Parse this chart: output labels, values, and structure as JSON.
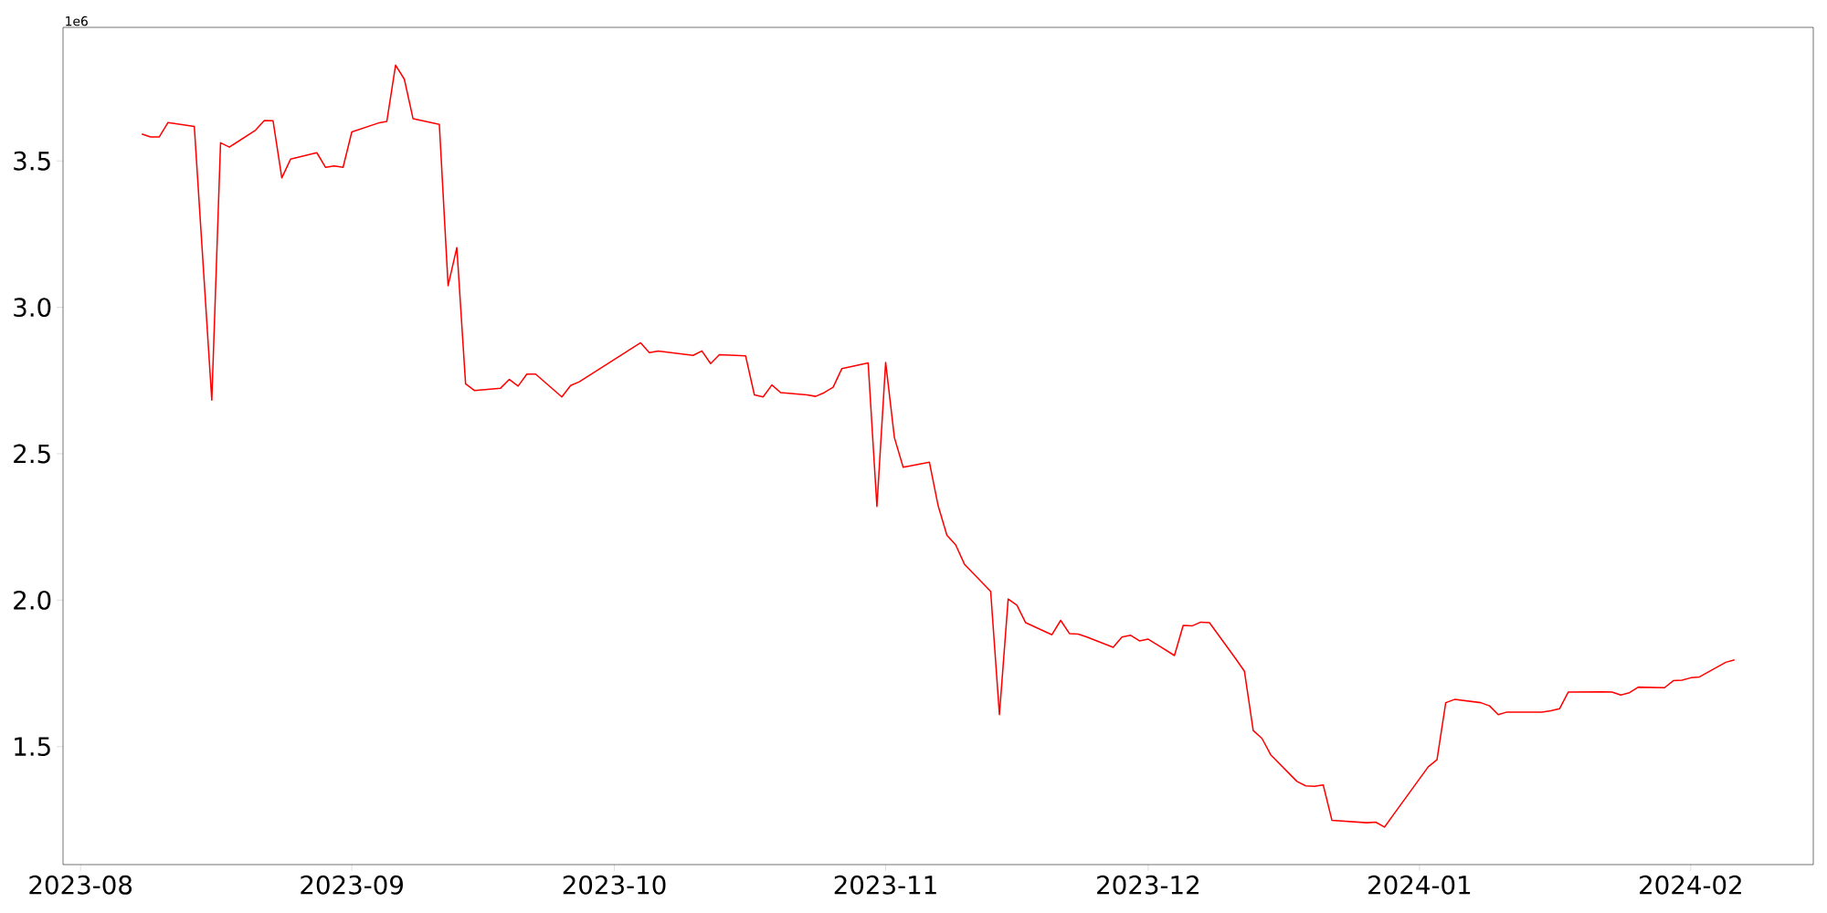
{
  "chart_data": {
    "type": "line",
    "annotations": [
      "1e6"
    ],
    "x": [
      "2023-08-08",
      "2023-08-09",
      "2023-08-10",
      "2023-08-11",
      "2023-08-14",
      "2023-08-16",
      "2023-08-17",
      "2023-08-18",
      "2023-08-21",
      "2023-08-22",
      "2023-08-23",
      "2023-08-24",
      "2023-08-25",
      "2023-08-28",
      "2023-08-29",
      "2023-08-30",
      "2023-08-31",
      "2023-09-01",
      "2023-09-04",
      "2023-09-05",
      "2023-09-06",
      "2023-09-07",
      "2023-09-08",
      "2023-09-11",
      "2023-09-12",
      "2023-09-13",
      "2023-09-14",
      "2023-09-15",
      "2023-09-18",
      "2023-09-19",
      "2023-09-20",
      "2023-09-21",
      "2023-09-22",
      "2023-09-25",
      "2023-09-26",
      "2023-09-27",
      "2023-10-04",
      "2023-10-05",
      "2023-10-06",
      "2023-10-10",
      "2023-10-11",
      "2023-10-12",
      "2023-10-13",
      "2023-10-16",
      "2023-10-17",
      "2023-10-18",
      "2023-10-19",
      "2023-10-20",
      "2023-10-23",
      "2023-10-24",
      "2023-10-25",
      "2023-10-26",
      "2023-10-27",
      "2023-10-30",
      "2023-10-31",
      "2023-11-01",
      "2023-11-02",
      "2023-11-03",
      "2023-11-06",
      "2023-11-07",
      "2023-11-08",
      "2023-11-09",
      "2023-11-10",
      "2023-11-13",
      "2023-11-14",
      "2023-11-15",
      "2023-11-16",
      "2023-11-17",
      "2023-11-20",
      "2023-11-21",
      "2023-11-22",
      "2023-11-23",
      "2023-11-24",
      "2023-11-27",
      "2023-11-28",
      "2023-11-29",
      "2023-11-30",
      "2023-12-01",
      "2023-12-04",
      "2023-12-05",
      "2023-12-06",
      "2023-12-07",
      "2023-12-08",
      "2023-12-11",
      "2023-12-12",
      "2023-12-13",
      "2023-12-14",
      "2023-12-15",
      "2023-12-18",
      "2023-12-19",
      "2023-12-20",
      "2023-12-21",
      "2023-12-22",
      "2023-12-26",
      "2023-12-27",
      "2023-12-28",
      "2024-01-02",
      "2024-01-03",
      "2024-01-04",
      "2024-01-05",
      "2024-01-08",
      "2024-01-09",
      "2024-01-10",
      "2024-01-11",
      "2024-01-15",
      "2024-01-16",
      "2024-01-17",
      "2024-01-18",
      "2024-01-22",
      "2024-01-23",
      "2024-01-24",
      "2024-01-25",
      "2024-01-26",
      "2024-01-29",
      "2024-01-30",
      "2024-01-31",
      "2024-02-01",
      "2024-02-02",
      "2024-02-05",
      "2024-02-06"
    ],
    "values": [
      3.592,
      3.582,
      3.582,
      3.631,
      3.618,
      2.683,
      3.562,
      3.547,
      3.605,
      3.638,
      3.637,
      3.442,
      3.506,
      3.528,
      3.478,
      3.483,
      3.478,
      3.599,
      3.629,
      3.635,
      3.827,
      3.779,
      3.644,
      3.625,
      3.074,
      3.204,
      2.739,
      2.716,
      2.724,
      2.754,
      2.731,
      2.772,
      2.772,
      2.694,
      2.733,
      2.746,
      2.879,
      2.845,
      2.851,
      2.836,
      2.851,
      2.808,
      2.838,
      2.834,
      2.701,
      2.694,
      2.735,
      2.709,
      2.701,
      2.696,
      2.709,
      2.727,
      2.791,
      2.81,
      2.32,
      2.812,
      2.555,
      2.454,
      2.471,
      2.322,
      2.222,
      2.189,
      2.123,
      2.03,
      1.609,
      2.004,
      1.983,
      1.923,
      1.882,
      1.931,
      1.886,
      1.884,
      1.874,
      1.839,
      1.874,
      1.88,
      1.861,
      1.867,
      1.811,
      1.914,
      1.912,
      1.925,
      1.923,
      1.8,
      1.757,
      1.555,
      1.528,
      1.472,
      1.381,
      1.366,
      1.364,
      1.369,
      1.248,
      1.24,
      1.242,
      1.225,
      1.431,
      1.455,
      1.65,
      1.661,
      1.65,
      1.639,
      1.609,
      1.618,
      1.618,
      1.622,
      1.629,
      1.686,
      1.687,
      1.686,
      1.676,
      1.684,
      1.703,
      1.701,
      1.725,
      1.727,
      1.735,
      1.738,
      1.788,
      1.796
    ],
    "color": "#ff0000",
    "xlim": [
      "2023-07-30",
      "2024-02-15"
    ],
    "xticks": [
      "2023-08",
      "2023-09",
      "2023-10",
      "2023-11",
      "2023-12",
      "2024-01",
      "2024-02"
    ],
    "ylim": [
      1.097,
      3.956
    ],
    "yticks": [
      {
        "value": 1.5,
        "label": "1.5"
      },
      {
        "value": 2.0,
        "label": "2.0"
      },
      {
        "value": 2.5,
        "label": "2.5"
      },
      {
        "value": 3.0,
        "label": "3.0"
      },
      {
        "value": 3.5,
        "label": "3.5"
      }
    ],
    "grid": false,
    "marker": "none",
    "line_style": "solid"
  }
}
